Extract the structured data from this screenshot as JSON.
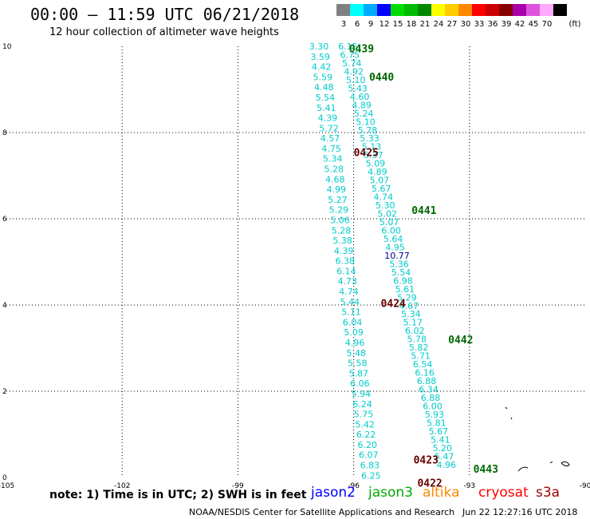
{
  "header": {
    "title": "00:00 – 11:59 UTC 06/21/2018",
    "subtitle": "12 hour collection of altimeter wave heights"
  },
  "color_scale": {
    "bins": [
      {
        "label": "3",
        "color": "#808080"
      },
      {
        "label": "6",
        "color": "#00ffff"
      },
      {
        "label": "9",
        "color": "#00aaff"
      },
      {
        "label": "12",
        "color": "#0000ff"
      },
      {
        "label": "15",
        "color": "#00dd00"
      },
      {
        "label": "18",
        "color": "#00bb00"
      },
      {
        "label": "21",
        "color": "#008800"
      },
      {
        "label": "24",
        "color": "#ffff00"
      },
      {
        "label": "27",
        "color": "#ffcc00"
      },
      {
        "label": "30",
        "color": "#ff8800"
      },
      {
        "label": "33",
        "color": "#ff0000"
      },
      {
        "label": "36",
        "color": "#cc0000"
      },
      {
        "label": "39",
        "color": "#880000"
      },
      {
        "label": "42",
        "color": "#aa00aa"
      },
      {
        "label": "45",
        "color": "#dd55dd"
      },
      {
        "label": "70",
        "color": "#ffaaff"
      },
      {
        "label": "",
        "color": "#000000"
      }
    ],
    "unit": "(ft)"
  },
  "chart_data": {
    "type": "scatter",
    "title": "00:00 – 11:59 UTC 06/21/2018",
    "subtitle": "12 hour collection of altimeter wave heights",
    "xlabel": "",
    "ylabel": "",
    "xlim": [
      -105,
      -90
    ],
    "ylim": [
      0,
      10
    ],
    "x_ticks": [
      "-105",
      "-102",
      "-99",
      "-96",
      "-93",
      "-90"
    ],
    "y_ticks": [
      "0",
      "2",
      "4",
      "6",
      "8",
      "10"
    ],
    "grid": true,
    "wave_colors": {
      "low": "#00cccc",
      "mid": "#00008b"
    },
    "track_a": {
      "lon_start": -96.9,
      "lon_end": -95.55,
      "lat_start": 10.0,
      "lat_end": 0.05,
      "values": [
        "3.30",
        "3.59",
        "4.42",
        "5.59",
        "4.48",
        "5.54",
        "5.41",
        "4.39",
        "5.72",
        "4.57",
        "4.75",
        "5.34",
        "5.28",
        "4.68",
        "4.99",
        "5.27",
        "5.29",
        "5.06",
        "5.28",
        "5.38",
        "4.39",
        "6.38",
        "6.14",
        "4.73",
        "4.74",
        "5.44",
        "5.11",
        "6.04",
        "5.09",
        "4.96",
        "5.48",
        "5.58",
        "5.87",
        "6.06",
        "5.94",
        "6.24",
        "5.75",
        "5.42",
        "6.22",
        "6.20",
        "6.07",
        "6.83",
        "6.25"
      ]
    },
    "track_b": {
      "lon_start": -96.15,
      "lon_end": -93.6,
      "lat_start": 10.0,
      "lat_end": 0.3,
      "values": [
        "6.15",
        "6.75",
        "5.74",
        "4.92",
        "5.10",
        "5.43",
        "4.60",
        "4.89",
        "5.24",
        "5.10",
        "5.78",
        "5.33",
        "5.13",
        "5.37",
        "5.09",
        "4.89",
        "5.07",
        "5.67",
        "4.74",
        "5.30",
        "5.02",
        "5.07",
        "6.00",
        "5.64",
        "4.95",
        "10.77",
        "5.36",
        "5.54",
        "6.98",
        "5.61",
        "5.29",
        "4.67",
        "5.34",
        "5.17",
        "6.02",
        "5.78",
        "5.82",
        "5.71",
        "6.54",
        "6.16",
        "6.88",
        "6.34",
        "6.88",
        "6.00",
        "5.93",
        "5.81",
        "5.67",
        "5.41",
        "5.20",
        "5.47",
        "4.96"
      ]
    },
    "time_labels": [
      {
        "text": "0439",
        "lon": -96.12,
        "lat": 9.95,
        "color": "#006600"
      },
      {
        "text": "0440",
        "lon": -95.6,
        "lat": 9.3,
        "color": "#006600"
      },
      {
        "text": "0425",
        "lon": -96.0,
        "lat": 7.55,
        "color": "#660000"
      },
      {
        "text": "0441",
        "lon": -94.5,
        "lat": 6.2,
        "color": "#006600"
      },
      {
        "text": "0424",
        "lon": -95.3,
        "lat": 4.05,
        "color": "#660000"
      },
      {
        "text": "0442",
        "lon": -93.55,
        "lat": 3.2,
        "color": "#006600"
      },
      {
        "text": "0423",
        "lon": -94.45,
        "lat": 0.42,
        "color": "#660000"
      },
      {
        "text": "0443",
        "lon": -92.9,
        "lat": 0.2,
        "color": "#006600"
      },
      {
        "text": "0422",
        "lon": -94.35,
        "lat": -0.12,
        "color": "#660000"
      }
    ]
  },
  "note": "note:  1) Time is in UTC; 2) SWH is in feet",
  "legend": [
    {
      "label": "jason2",
      "color": "#0000ff"
    },
    {
      "label": "jason3",
      "color": "#00aa00"
    },
    {
      "label": "altika",
      "color": "#ff8800"
    },
    {
      "label": "cryosat",
      "color": "#ff0000"
    },
    {
      "label": "s3a",
      "color": "#990000"
    }
  ],
  "footer": {
    "credit": "NOAA/NESDIS Center for Satellite Applications and Research",
    "timestamp": "Jun 22 12:27:16 UTC 2018"
  }
}
